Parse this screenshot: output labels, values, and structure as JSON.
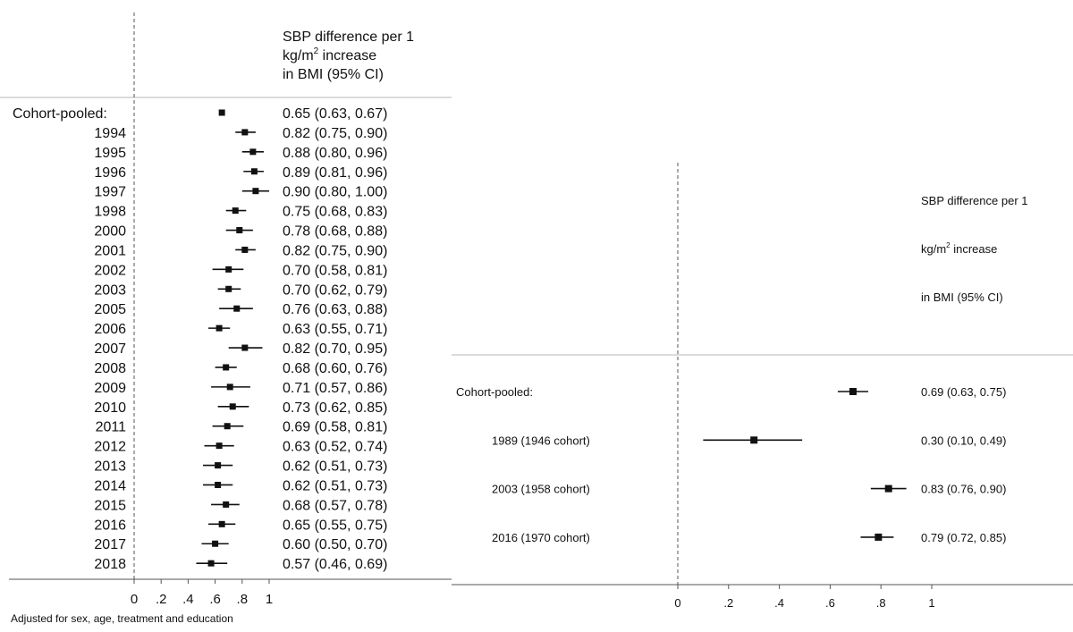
{
  "chart_data": [
    {
      "type": "forest",
      "header": {
        "line1": "SBP difference per 1",
        "line2_pre": "kg/m",
        "line2_sup": "2",
        "line2_post": " increase",
        "line3": "in BMI (95% CI)"
      },
      "xticks": [
        "0",
        ".2",
        ".4",
        ".6",
        ".8",
        "1"
      ],
      "xlim": [
        0,
        1
      ],
      "reference_line": 0,
      "footnote": "Adjusted for sex, age, treatment and education",
      "rows": [
        {
          "label": "Cohort-pooled:",
          "estimate": 0.65,
          "lower": 0.63,
          "upper": 0.67,
          "ci_text": "0.65 (0.63, 0.67)"
        },
        {
          "label": "1994",
          "estimate": 0.82,
          "lower": 0.75,
          "upper": 0.9,
          "ci_text": "0.82 (0.75, 0.90)"
        },
        {
          "label": "1995",
          "estimate": 0.88,
          "lower": 0.8,
          "upper": 0.96,
          "ci_text": "0.88 (0.80, 0.96)"
        },
        {
          "label": "1996",
          "estimate": 0.89,
          "lower": 0.81,
          "upper": 0.96,
          "ci_text": "0.89 (0.81, 0.96)"
        },
        {
          "label": "1997",
          "estimate": 0.9,
          "lower": 0.8,
          "upper": 1.0,
          "ci_text": "0.90 (0.80, 1.00)"
        },
        {
          "label": "1998",
          "estimate": 0.75,
          "lower": 0.68,
          "upper": 0.83,
          "ci_text": "0.75 (0.68, 0.83)"
        },
        {
          "label": "2000",
          "estimate": 0.78,
          "lower": 0.68,
          "upper": 0.88,
          "ci_text": "0.78 (0.68, 0.88)"
        },
        {
          "label": "2001",
          "estimate": 0.82,
          "lower": 0.75,
          "upper": 0.9,
          "ci_text": "0.82 (0.75, 0.90)"
        },
        {
          "label": "2002",
          "estimate": 0.7,
          "lower": 0.58,
          "upper": 0.81,
          "ci_text": "0.70 (0.58, 0.81)"
        },
        {
          "label": "2003",
          "estimate": 0.7,
          "lower": 0.62,
          "upper": 0.79,
          "ci_text": "0.70 (0.62, 0.79)"
        },
        {
          "label": "2005",
          "estimate": 0.76,
          "lower": 0.63,
          "upper": 0.88,
          "ci_text": "0.76 (0.63, 0.88)"
        },
        {
          "label": "2006",
          "estimate": 0.63,
          "lower": 0.55,
          "upper": 0.71,
          "ci_text": "0.63 (0.55, 0.71)"
        },
        {
          "label": "2007",
          "estimate": 0.82,
          "lower": 0.7,
          "upper": 0.95,
          "ci_text": "0.82 (0.70, 0.95)"
        },
        {
          "label": "2008",
          "estimate": 0.68,
          "lower": 0.6,
          "upper": 0.76,
          "ci_text": "0.68 (0.60, 0.76)"
        },
        {
          "label": "2009",
          "estimate": 0.71,
          "lower": 0.57,
          "upper": 0.86,
          "ci_text": "0.71 (0.57, 0.86)"
        },
        {
          "label": "2010",
          "estimate": 0.73,
          "lower": 0.62,
          "upper": 0.85,
          "ci_text": "0.73 (0.62, 0.85)"
        },
        {
          "label": "2011",
          "estimate": 0.69,
          "lower": 0.58,
          "upper": 0.81,
          "ci_text": "0.69 (0.58, 0.81)"
        },
        {
          "label": "2012",
          "estimate": 0.63,
          "lower": 0.52,
          "upper": 0.74,
          "ci_text": "0.63 (0.52, 0.74)"
        },
        {
          "label": "2013",
          "estimate": 0.62,
          "lower": 0.51,
          "upper": 0.73,
          "ci_text": "0.62 (0.51, 0.73)"
        },
        {
          "label": "2014",
          "estimate": 0.62,
          "lower": 0.51,
          "upper": 0.73,
          "ci_text": "0.62 (0.51, 0.73)"
        },
        {
          "label": "2015",
          "estimate": 0.68,
          "lower": 0.57,
          "upper": 0.78,
          "ci_text": "0.68 (0.57, 0.78)"
        },
        {
          "label": "2016",
          "estimate": 0.65,
          "lower": 0.55,
          "upper": 0.75,
          "ci_text": "0.65 (0.55, 0.75)"
        },
        {
          "label": "2017",
          "estimate": 0.6,
          "lower": 0.5,
          "upper": 0.7,
          "ci_text": "0.60 (0.50, 0.70)"
        },
        {
          "label": "2018",
          "estimate": 0.57,
          "lower": 0.46,
          "upper": 0.69,
          "ci_text": "0.57 (0.46, 0.69)"
        }
      ]
    },
    {
      "type": "forest",
      "header": {
        "line1": "SBP difference per 1",
        "line2_pre": "kg/m",
        "line2_sup": "2",
        "line2_post": " increase",
        "line3": "in BMI (95% CI)"
      },
      "xticks": [
        "0",
        ".2",
        ".4",
        ".6",
        ".8",
        "1"
      ],
      "xlim": [
        0,
        1
      ],
      "reference_line": 0,
      "rows": [
        {
          "label": "Cohort-pooled:",
          "estimate": 0.69,
          "lower": 0.63,
          "upper": 0.75,
          "ci_text": "0.69 (0.63, 0.75)"
        },
        {
          "label": "1989 (1946 cohort)",
          "estimate": 0.3,
          "lower": 0.1,
          "upper": 0.49,
          "ci_text": "0.30 (0.10, 0.49)"
        },
        {
          "label": "2003 (1958 cohort)",
          "estimate": 0.83,
          "lower": 0.76,
          "upper": 0.9,
          "ci_text": "0.83 (0.76, 0.90)"
        },
        {
          "label": "2016 (1970 cohort)",
          "estimate": 0.79,
          "lower": 0.72,
          "upper": 0.85,
          "ci_text": "0.79 (0.72, 0.85)"
        }
      ]
    }
  ]
}
